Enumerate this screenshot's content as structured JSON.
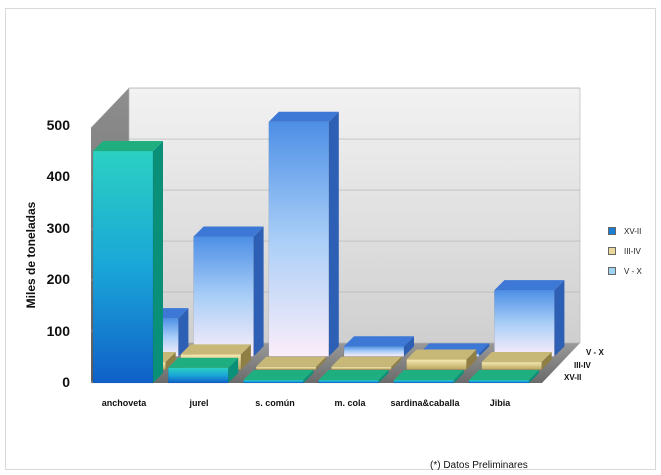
{
  "footnote": "(*) Datos Preliminares",
  "chart_data": {
    "type": "bar",
    "subtype": "3d-stacked-depth",
    "title": "",
    "xlabel": "",
    "ylabel": "Miles de toneladas",
    "ylim": [
      0,
      500
    ],
    "yticks": [
      0,
      100,
      200,
      300,
      400,
      500
    ],
    "grid": true,
    "legend_position": "right",
    "categories": [
      "anchoveta",
      "jurel",
      "s. común",
      "m. cola",
      "sardina&caballa",
      "Jibia"
    ],
    "depth_labels": [
      "V - X",
      "III-IV",
      "XV-II"
    ],
    "series": [
      {
        "name": "XV-II",
        "values": [
          455,
          30,
          0,
          0,
          5,
          0
        ],
        "color": "#1b7fd4"
      },
      {
        "name": "III-IV",
        "values": [
          15,
          30,
          0,
          0,
          20,
          15
        ],
        "color": "#e9d79c"
      },
      {
        "name": "V - X",
        "values": [
          75,
          235,
          460,
          20,
          5,
          130
        ],
        "color": "#9ed3f2"
      }
    ]
  }
}
